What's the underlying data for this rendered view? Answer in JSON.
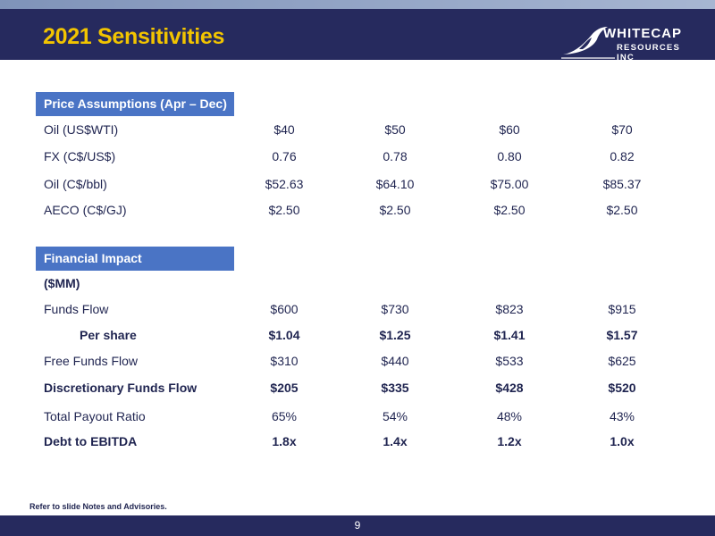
{
  "title": "2021 Sensitivities",
  "logo": {
    "line1": "WHITECAP",
    "line2": "RESOURCES INC"
  },
  "price_section": {
    "header": "Price Assumptions (Apr – Dec)",
    "rows": [
      {
        "label": "Oil (US$WTI)",
        "values": [
          "$40",
          "$50",
          "$60",
          "$70"
        ]
      },
      {
        "label": "FX (C$/US$)",
        "values": [
          "0.76",
          "0.78",
          "0.80",
          "0.82"
        ]
      },
      {
        "label": "Oil (C$/bbl)",
        "values": [
          "$52.63",
          "$64.10",
          "$75.00",
          "$85.37"
        ]
      },
      {
        "label": "AECO (C$/GJ)",
        "values": [
          "$2.50",
          "$2.50",
          "$2.50",
          "$2.50"
        ]
      }
    ]
  },
  "financial_section": {
    "header": "Financial Impact",
    "units": "($MM)",
    "rows": [
      {
        "label": "Funds Flow",
        "values": [
          "$600",
          "$730",
          "$823",
          "$915"
        ]
      },
      {
        "label": "Per share",
        "values": [
          "$1.04",
          "$1.25",
          "$1.41",
          "$1.57"
        ]
      },
      {
        "label": "Free Funds Flow",
        "values": [
          "$310",
          "$440",
          "$533",
          "$625"
        ]
      },
      {
        "label": "Discretionary Funds Flow",
        "values": [
          "$205",
          "$335",
          "$428",
          "$520"
        ]
      },
      {
        "label": "Total Payout Ratio",
        "values": [
          "65%",
          "54%",
          "48%",
          "43%"
        ]
      },
      {
        "label": "Debt to EBITDA",
        "values": [
          "1.8x",
          "1.4x",
          "1.2x",
          "1.0x"
        ]
      }
    ]
  },
  "footnote": "Refer to slide Notes and Advisories.",
  "page_number": "9",
  "colors": {
    "header_bg": "#262a5e",
    "title": "#f2c400",
    "section_header_bg": "#4a74c5",
    "text": "#1f2450"
  }
}
